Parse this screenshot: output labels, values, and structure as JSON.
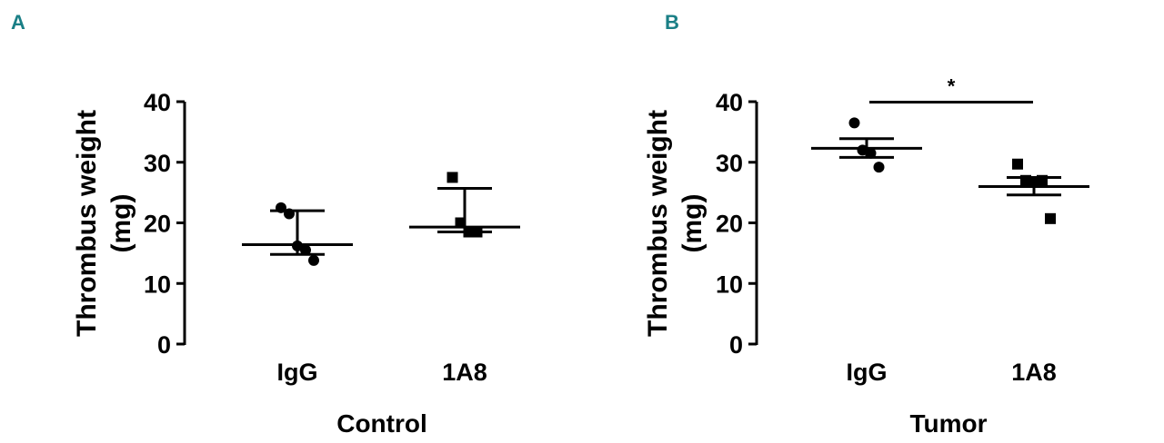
{
  "colors": {
    "panel_label": "#1a7f86",
    "marks": "#000000"
  },
  "chart_data": [
    {
      "type": "scatter",
      "panel_label": "A",
      "title": "",
      "xlabel": "Control",
      "ylabel": "Thrombus weight (mg)",
      "ylabel_lines": [
        "Thrombus weight",
        "(mg)"
      ],
      "ylim": [
        0,
        40
      ],
      "yticks": [
        "0",
        "10",
        "20",
        "30",
        "40"
      ],
      "categories": [
        "IgG",
        "1A8"
      ],
      "series": [
        {
          "name": "IgG",
          "marker": "circle",
          "values": [
            22.5,
            21.5,
            16.2,
            15.5,
            13.8
          ],
          "center": 16.4,
          "error_low": 14.8,
          "error_high": 22.0
        },
        {
          "name": "1A8",
          "marker": "square",
          "values": [
            27.5,
            20.0,
            18.5,
            18.5
          ],
          "center": 19.3,
          "error_low": 18.5,
          "error_high": 25.7
        }
      ],
      "significance": null
    },
    {
      "type": "scatter",
      "panel_label": "B",
      "title": "",
      "xlabel": "Tumor",
      "ylabel": "Thrombus weight (mg)",
      "ylabel_lines": [
        "Thrombus weight",
        "(mg)"
      ],
      "ylim": [
        0,
        40
      ],
      "yticks": [
        "0",
        "10",
        "20",
        "30",
        "40"
      ],
      "categories": [
        "IgG",
        "1A8"
      ],
      "series": [
        {
          "name": "IgG",
          "marker": "circle",
          "values": [
            36.5,
            32.0,
            31.5,
            29.2
          ],
          "center": 32.3,
          "error_low": 30.8,
          "error_high": 33.9
        },
        {
          "name": "1A8",
          "marker": "square",
          "values": [
            29.7,
            27.0,
            26.8,
            27.0,
            20.7
          ],
          "center": 26.0,
          "error_low": 24.6,
          "error_high": 27.5
        }
      ],
      "significance": {
        "between": [
          "IgG",
          "1A8"
        ],
        "label": "*"
      }
    }
  ]
}
